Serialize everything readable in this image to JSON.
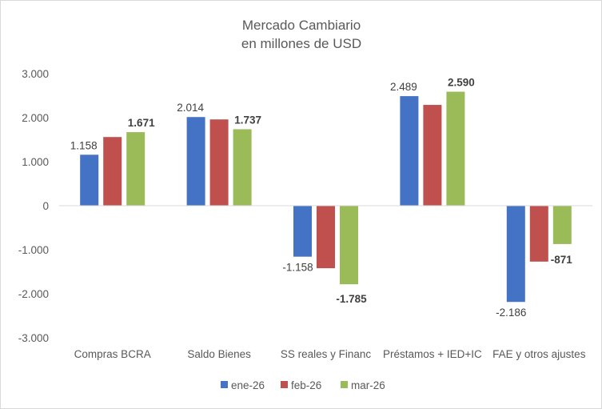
{
  "chart_data": {
    "type": "bar",
    "title": "Mercado Cambiario",
    "subtitle": "en millones de USD",
    "xlabel": "",
    "ylabel": "",
    "ylim": [
      -3000,
      3000
    ],
    "yticks": [
      3000,
      2000,
      1000,
      0,
      -1000,
      -2000,
      -3000
    ],
    "ytick_labels": [
      "3.000",
      "2.000",
      "1.000",
      "0",
      "-1.000",
      "-2.000",
      "-3.000"
    ],
    "grid": false,
    "legend_position": "bottom",
    "categories": [
      "Compras BCRA",
      "Saldo Bienes",
      "SS reales y Financ",
      "Préstamos + IED+IC",
      "FAE y otros ajustes"
    ],
    "series": [
      {
        "name": "ene-26",
        "color": "#4472c4",
        "values": [
          1158,
          2014,
          -1158,
          2489,
          -2186
        ],
        "labels": [
          "1.158",
          "2.014",
          "-1.158",
          "2.489",
          "-2.186"
        ]
      },
      {
        "name": "feb-26",
        "color": "#c0504d",
        "values": [
          1560,
          1960,
          -1420,
          2290,
          -1270
        ],
        "labels": [
          null,
          null,
          null,
          null,
          null
        ]
      },
      {
        "name": "mar-26",
        "color": "#9bbb59",
        "values": [
          1671,
          1737,
          -1785,
          2590,
          -871
        ],
        "labels": [
          "1.671",
          "1.737",
          "-1.785",
          "2.590",
          "-871"
        ]
      }
    ]
  }
}
